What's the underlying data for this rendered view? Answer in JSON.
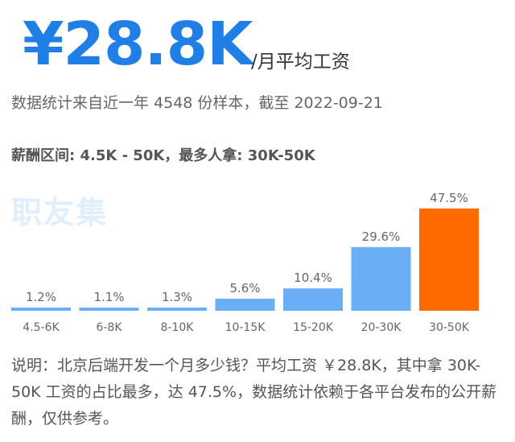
{
  "header": {
    "salary": "¥28.8K",
    "unit": "/月平均工资"
  },
  "meta": "数据统计来自近一年 4548 份样本，截至 2022-09-21",
  "range": "薪酬区间: 4.5K - 50K，最多人拿: 30K-50K",
  "watermark": "职友集",
  "chart_data": {
    "type": "bar",
    "categories": [
      "4.5-6K",
      "6-8K",
      "8-10K",
      "10-15K",
      "15-20K",
      "20-30K",
      "30-50K"
    ],
    "values": [
      1.2,
      1.1,
      1.3,
      5.6,
      10.4,
      29.6,
      47.5
    ],
    "value_labels": [
      "1.2%",
      "1.1%",
      "1.3%",
      "5.6%",
      "10.4%",
      "29.6%",
      "47.5%"
    ],
    "highlight_index": 6,
    "colors": {
      "bar": "#6aaef5",
      "highlight": "#ff6a00"
    },
    "title": "",
    "xlabel": "",
    "ylabel": "",
    "ylim": [
      0,
      47.5
    ],
    "grid": false,
    "legend": "none"
  },
  "description": "说明：北京后端开发一个月多少钱？平均工资 ￥28.8K，其中拿 30K-50K 工资的占比最多，达 47.5%，数据统计依赖于各平台发布的公开薪酬，仅供参考。"
}
